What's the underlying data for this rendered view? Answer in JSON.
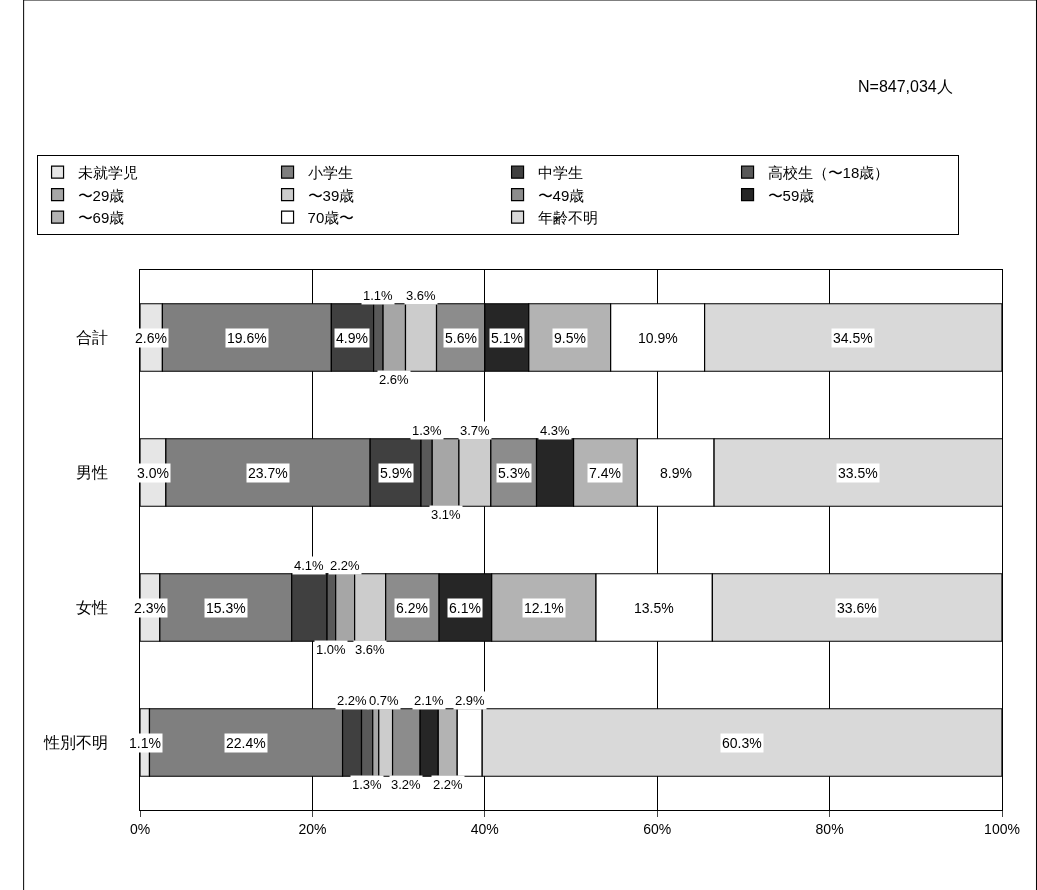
{
  "chart_data": {
    "type": "bar",
    "orientation": "horizontal",
    "stacked": true,
    "categories": [
      "合計",
      "男性",
      "女性",
      "性別不明"
    ],
    "annotations": [
      "N=847,034人"
    ],
    "xlim": [
      0,
      100
    ],
    "xticks": [
      {
        "value": 0,
        "label": "0%"
      },
      {
        "value": 20,
        "label": "20%"
      },
      {
        "value": 40,
        "label": "40%"
      },
      {
        "value": 60,
        "label": "60%"
      },
      {
        "value": 80,
        "label": "80%"
      },
      {
        "value": 100,
        "label": "100%"
      }
    ],
    "grid": "x",
    "legend": "top",
    "series": [
      {
        "name": "未就学児",
        "color": "#e6e6e6",
        "values": [
          2.6,
          3.0,
          2.3,
          1.1
        ],
        "value_labels": [
          "2.6%",
          "3.0%",
          "2.3%",
          "1.1%"
        ]
      },
      {
        "name": "小学生",
        "color": "#7f7f7f",
        "values": [
          19.6,
          23.7,
          15.3,
          22.4
        ],
        "value_labels": [
          "19.6%",
          "23.7%",
          "15.3%",
          "22.4%"
        ]
      },
      {
        "name": "中学生",
        "color": "#404040",
        "values": [
          4.9,
          5.9,
          4.1,
          2.2
        ],
        "value_labels": [
          "4.9%",
          "5.9%",
          "4.1%",
          "2.2%"
        ]
      },
      {
        "name": "高校生（〜18歳）",
        "color": "#595959",
        "values": [
          1.1,
          1.3,
          1.0,
          1.3
        ],
        "value_labels": [
          "1.1%",
          "1.3%",
          "1.0%",
          "1.3%"
        ]
      },
      {
        "name": "〜29歳",
        "color": "#a6a6a6",
        "values": [
          2.6,
          3.1,
          2.2,
          0.7
        ],
        "value_labels": [
          "2.6%",
          "3.1%",
          "2.2%",
          "0.7%"
        ]
      },
      {
        "name": "〜39歳",
        "color": "#cccccc",
        "values": [
          3.6,
          3.7,
          3.6,
          1.6
        ],
        "value_labels": [
          "3.6%",
          "3.7%",
          "3.6%",
          null
        ]
      },
      {
        "name": "〜49歳",
        "color": "#8c8c8c",
        "values": [
          5.6,
          5.3,
          6.2,
          3.2
        ],
        "value_labels": [
          "5.6%",
          "5.3%",
          "6.2%",
          "3.2%"
        ]
      },
      {
        "name": "〜59歳",
        "color": "#262626",
        "values": [
          5.1,
          4.3,
          6.1,
          2.1
        ],
        "value_labels": [
          "5.1%",
          "4.3%",
          "6.1%",
          "2.1%"
        ]
      },
      {
        "name": "〜69歳",
        "color": "#b3b3b3",
        "values": [
          9.5,
          7.4,
          12.1,
          2.2
        ],
        "value_labels": [
          "9.5%",
          "7.4%",
          "12.1%",
          "2.2%"
        ]
      },
      {
        "name": "70歳〜",
        "color": "#ffffff",
        "values": [
          10.9,
          8.9,
          13.5,
          2.9
        ],
        "value_labels": [
          "10.9%",
          "8.9%",
          "13.5%",
          "2.9%"
        ]
      },
      {
        "name": "年齢不明",
        "color": "#d9d9d9",
        "values": [
          34.5,
          33.5,
          33.6,
          60.3
        ],
        "value_labels": [
          "34.5%",
          "33.5%",
          "33.6%",
          "60.3%"
        ]
      }
    ]
  }
}
